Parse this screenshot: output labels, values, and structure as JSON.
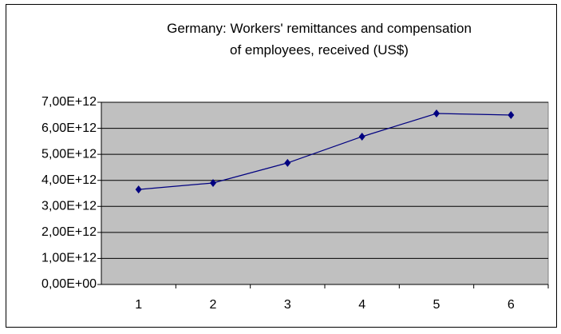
{
  "chart_data": {
    "type": "line",
    "title": "Germany: Workers' remittances and compensation of employees, received (US$)",
    "categories": [
      "1",
      "2",
      "3",
      "4",
      "5",
      "6"
    ],
    "series": [
      {
        "name": "Germany",
        "color": "#000080",
        "values": [
          3650000000000,
          3900000000000,
          4670000000000,
          5680000000000,
          6570000000000,
          6510000000000
        ]
      }
    ],
    "ylim": [
      0,
      7000000000000
    ],
    "yticks": [
      {
        "value": 0,
        "label": "0,00E+00"
      },
      {
        "value": 1000000000000,
        "label": "1,00E+12"
      },
      {
        "value": 2000000000000,
        "label": "2,00E+12"
      },
      {
        "value": 3000000000000,
        "label": "3,00E+12"
      },
      {
        "value": 4000000000000,
        "label": "4,00E+12"
      },
      {
        "value": 5000000000000,
        "label": "5,00E+12"
      },
      {
        "value": 6000000000000,
        "label": "6,00E+12"
      },
      {
        "value": 7000000000000,
        "label": "7,00E+12"
      }
    ],
    "grid": true,
    "plot_background": "#c0c0c0"
  }
}
